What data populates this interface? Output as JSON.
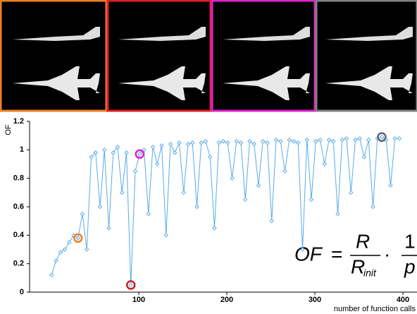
{
  "chart_data": {
    "type": "line",
    "ylabel": "OF",
    "xlabel": "number of function calls",
    "xlim": [
      -24,
      416
    ],
    "xticks": [
      100,
      200,
      300,
      400
    ],
    "ylim": [
      0,
      1.2
    ],
    "yticks": [
      0,
      0.2,
      0.4,
      0.6,
      0.8,
      1,
      1.2
    ],
    "color": "#5aaae8",
    "x": [
      1,
      6,
      11,
      16,
      21,
      26,
      31,
      36,
      41,
      46,
      51,
      56,
      61,
      66,
      71,
      76,
      81,
      86,
      91,
      96,
      101,
      106,
      111,
      116,
      121,
      126,
      131,
      136,
      141,
      146,
      151,
      156,
      161,
      166,
      171,
      176,
      181,
      186,
      191,
      196,
      201,
      206,
      211,
      216,
      221,
      226,
      231,
      236,
      241,
      246,
      251,
      256,
      261,
      266,
      271,
      276,
      281,
      286,
      291,
      296,
      301,
      306,
      311,
      316,
      321,
      326,
      331,
      336,
      341,
      346,
      351,
      356,
      361,
      366,
      371,
      376,
      381,
      386,
      391,
      396
    ],
    "values": [
      0.12,
      0.22,
      0.28,
      0.3,
      0.35,
      0.4,
      0.38,
      0.55,
      0.3,
      0.95,
      0.98,
      0.6,
      1.0,
      0.45,
      0.98,
      1.02,
      0.7,
      0.98,
      0.05,
      0.85,
      0.97,
      1.0,
      0.55,
      1.02,
      0.9,
      1.03,
      0.4,
      1.04,
      0.98,
      1.05,
      0.7,
      1.04,
      1.05,
      0.6,
      1.05,
      1.06,
      0.95,
      0.45,
      1.05,
      1.06,
      1.05,
      0.8,
      1.06,
      1.05,
      0.65,
      1.06,
      1.04,
      0.75,
      1.06,
      1.05,
      0.5,
      1.07,
      1.06,
      0.85,
      1.07,
      1.06,
      1.05,
      0.3,
      1.07,
      0.65,
      1.06,
      1.07,
      0.9,
      1.07,
      1.06,
      0.55,
      1.07,
      1.08,
      0.7,
      1.07,
      1.08,
      0.95,
      1.07,
      0.6,
      1.08,
      1.09,
      1.07,
      0.75,
      1.08,
      1.08
    ],
    "highlights": [
      {
        "x": 31,
        "y": 0.38,
        "color": "#f08020"
      },
      {
        "x": 91,
        "y": 0.05,
        "color": "#d02020"
      },
      {
        "x": 101,
        "y": 0.97,
        "color": "#e020d0"
      },
      {
        "x": 376,
        "y": 1.09,
        "color": "#606070"
      }
    ],
    "formula": {
      "lhs": "OF",
      "eq": "=",
      "num": "R",
      "den": "R",
      "den_sub": "init",
      "dot": "·",
      "num2": "1",
      "den2": "p"
    }
  }
}
